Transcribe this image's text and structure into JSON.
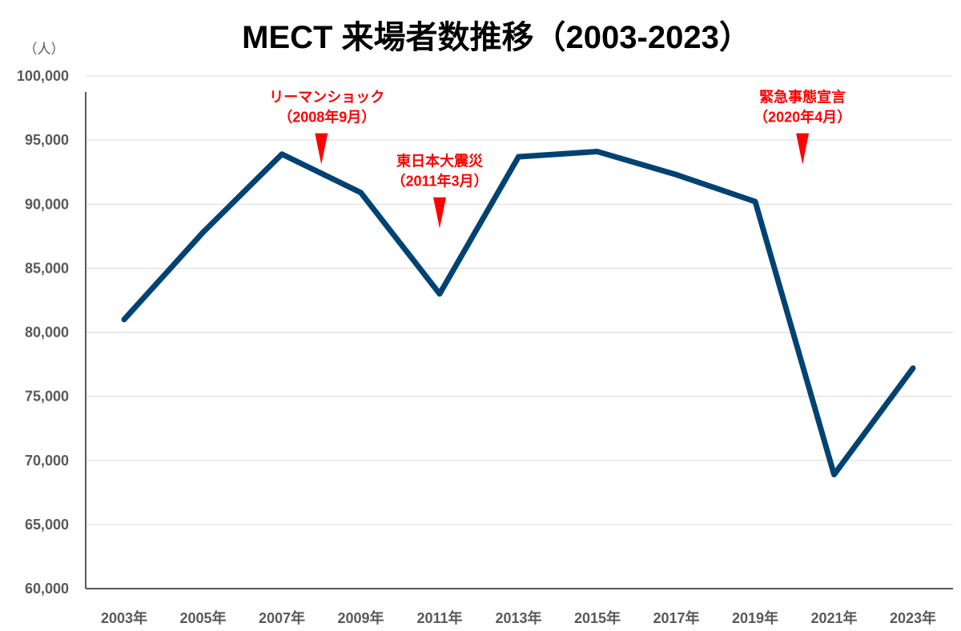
{
  "chart_data": {
    "type": "line",
    "title": "MECT 来場者数推移（2003-2023）",
    "ylabel": "（人）",
    "xlabel": "",
    "categories": [
      "2003年",
      "2005年",
      "2007年",
      "2009年",
      "2011年",
      "2013年",
      "2015年",
      "2017年",
      "2019年",
      "2021年",
      "2023年"
    ],
    "x": [
      2003,
      2005,
      2007,
      2009,
      2011,
      2013,
      2015,
      2017,
      2019,
      2021,
      2023
    ],
    "values": [
      81000,
      87800,
      93900,
      90900,
      83000,
      93700,
      94100,
      92300,
      90200,
      68900,
      77200
    ],
    "ylim": [
      60000,
      100000
    ],
    "yticks": [
      60000,
      65000,
      70000,
      75000,
      80000,
      85000,
      90000,
      95000,
      100000
    ],
    "ytick_labels": [
      "60,000",
      "65,000",
      "70,000",
      "75,000",
      "80,000",
      "85,000",
      "90,000",
      "95,000",
      "100,000"
    ],
    "grid": true,
    "legend": "none",
    "line_color": "#004373",
    "annotation_color": "#ff0000",
    "annotations": [
      {
        "lines": [
          "リーマンショック",
          "（2008年9月）"
        ],
        "x": 2008.0,
        "y": 93100
      },
      {
        "lines": [
          "東日本大震災",
          "（2011年3月）"
        ],
        "x": 2011.0,
        "y": 88100
      },
      {
        "lines": [
          "緊急事態宣言",
          "（2020年4月）"
        ],
        "x": 2020.2,
        "y": 93100
      }
    ]
  }
}
